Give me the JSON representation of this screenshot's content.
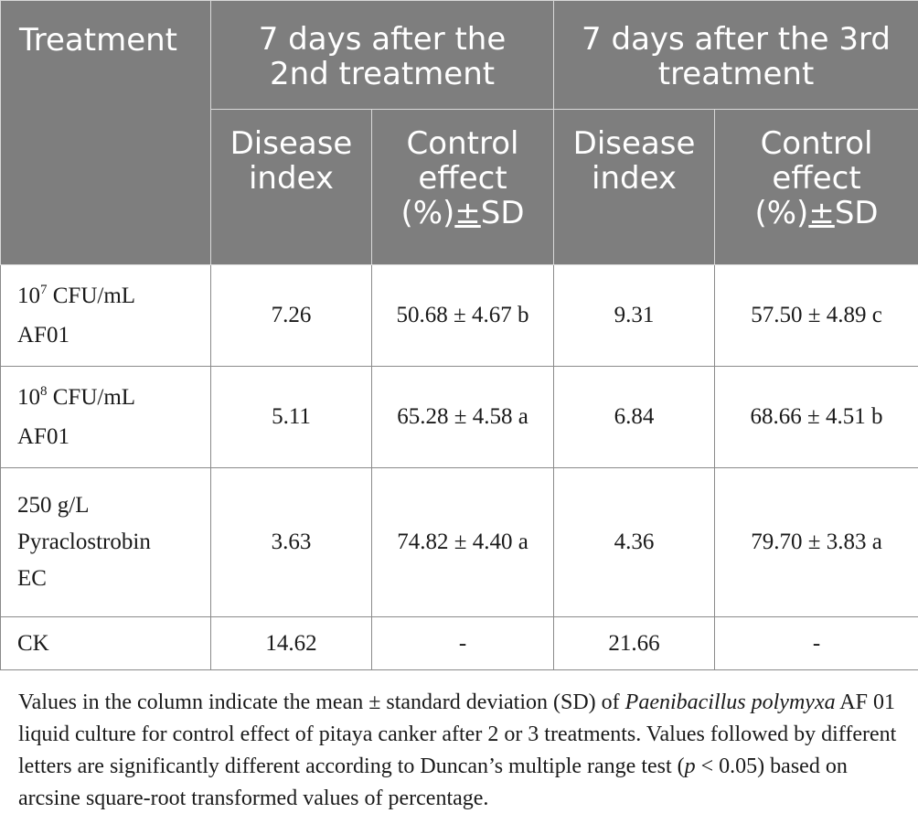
{
  "table": {
    "header": {
      "treatment": "Treatment",
      "group1": [
        "7 days after the",
        "2nd treatment"
      ],
      "group2": [
        "7 days after the 3rd",
        "treatment"
      ],
      "disease_index": [
        "Disease",
        "index"
      ],
      "control_effect": [
        "Control",
        "effect",
        "(%)",
        "±",
        "SD"
      ]
    },
    "rows": [
      {
        "treatment_lines": [
          {
            "base": "10",
            "sup": "7",
            "rest": " CFU/mL"
          },
          {
            "text": "AF01"
          }
        ],
        "di2": "7.26",
        "ce2": "50.68 ± 4.67 b",
        "di3": "9.31",
        "ce3": "57.50 ± 4.89 c"
      },
      {
        "treatment_lines": [
          {
            "base": "10",
            "sup": "8",
            "rest": " CFU/mL"
          },
          {
            "text": "AF01"
          }
        ],
        "di2": "5.11",
        "ce2": "65.28 ± 4.58 a",
        "di3": "6.84",
        "ce3": "68.66 ± 4.51 b"
      },
      {
        "treatment_lines": [
          {
            "text": "250 g/L"
          },
          {
            "text": "Pyraclostrobin"
          },
          {
            "text": "EC"
          }
        ],
        "di2": "3.63",
        "ce2": "74.82 ± 4.40 a",
        "di3": "4.36",
        "ce3": "79.70 ± 3.83 a"
      },
      {
        "treatment_lines": [
          {
            "text": "CK"
          }
        ],
        "di2": "14.62",
        "ce2": "-",
        "di3": "21.66",
        "ce3": "-"
      }
    ]
  },
  "footnote": {
    "part1": "Values in the column indicate the mean ± standard deviation (SD) of ",
    "species": "Paenibacillus polymyxa",
    "part2": " AF 01 liquid culture for control effect of pitaya canker after 2 or 3 treatments. Values followed by different letters are significantly different according to Duncan’s multiple range test (",
    "p": "p",
    "part3": " < 0.05) based on arcsine square-root transformed values of percentage."
  }
}
